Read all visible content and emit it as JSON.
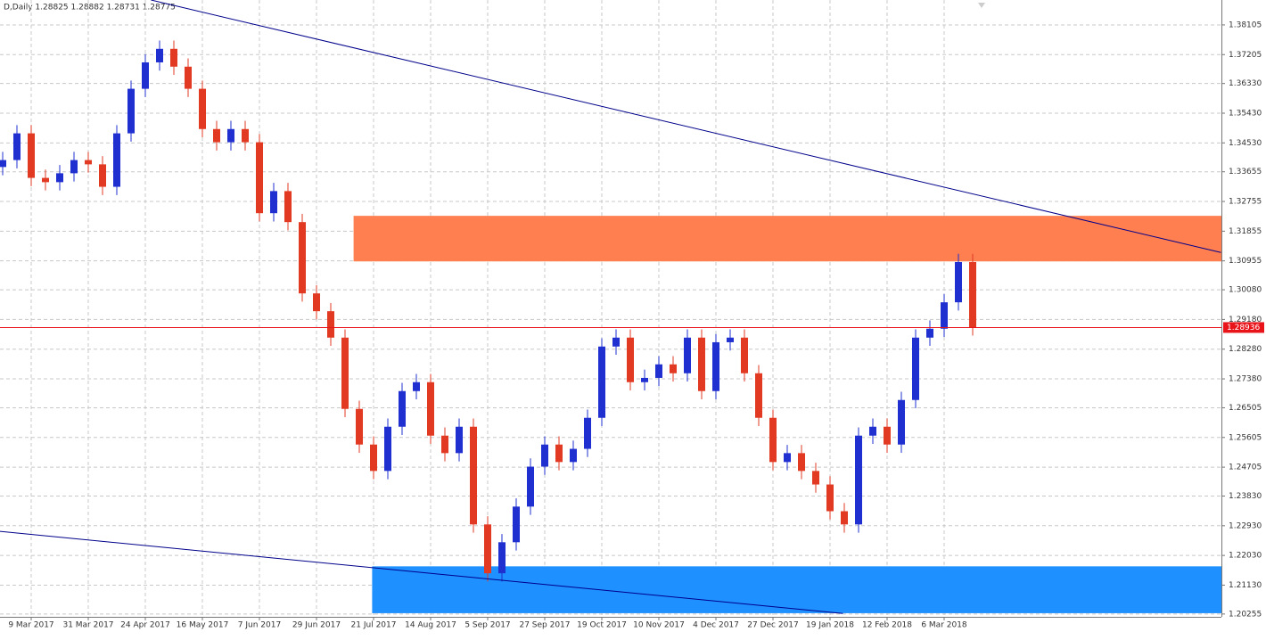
{
  "chart_data": {
    "type": "candlestick",
    "title": "D,Daily 1.28825 1.28882 1.28731 1.28775",
    "up_color": "#1f2fd0",
    "down_color": "#e23a22",
    "grid": true,
    "xlim": [
      -0.1875,
      85.4375
    ],
    "xticks": [
      {
        "value": 2,
        "label": "9 Mar 2017"
      },
      {
        "value": 6,
        "label": "31 Mar 2017"
      },
      {
        "value": 10,
        "label": "24 Apr 2017"
      },
      {
        "value": 14,
        "label": "16 May 2017"
      },
      {
        "value": 18,
        "label": "7 Jun 2017"
      },
      {
        "value": 22,
        "label": "29 Jun 2017"
      },
      {
        "value": 26,
        "label": "21 Jul 2017"
      },
      {
        "value": 30,
        "label": "14 Aug 2017"
      },
      {
        "value": 34,
        "label": "5 Sep 2017"
      },
      {
        "value": 38,
        "label": "27 Sep 2017"
      },
      {
        "value": 42,
        "label": "19 Oct 2017"
      },
      {
        "value": 46,
        "label": "10 Nov 2017"
      },
      {
        "value": 50,
        "label": "4 Dec 2017"
      },
      {
        "value": 54,
        "label": "27 Dec 2017"
      },
      {
        "value": 58,
        "label": "19 Jan 2018"
      },
      {
        "value": 62,
        "label": "12 Feb 2018"
      },
      {
        "value": 66,
        "label": "6 Mar 2018"
      }
    ],
    "ylim": [
      1.2017,
      1.3886
    ],
    "yticks": [
      1.38105,
      1.37205,
      {
        "value": 1.3633,
        "label": "1.36330"
      },
      {
        "value": 1.3543,
        "label": "1.35430"
      },
      {
        "value": 1.3453,
        "label": "1.34530"
      },
      1.33655,
      1.32755,
      1.31855,
      1.30955,
      {
        "value": 1.3008,
        "label": "1.30080"
      },
      {
        "value": 1.2918,
        "label": "1.29180"
      },
      {
        "value": 1.2828,
        "label": "1.28280"
      },
      {
        "value": 1.2738,
        "label": "1.27380"
      },
      1.26505,
      1.25605,
      1.24705,
      {
        "value": 1.2383,
        "label": "1.23830"
      },
      {
        "value": 1.2293,
        "label": "1.22930"
      },
      {
        "value": 1.2203,
        "label": "1.22030"
      },
      {
        "value": 1.2113,
        "label": "1.21130"
      },
      1.20255
    ],
    "current_price": 1.28936,
    "current_color": "#e8141a",
    "open": [
      1.338,
      1.3401,
      1.3482,
      1.3347,
      1.3334,
      1.3361,
      1.3401,
      1.3388,
      1.332,
      1.3482,
      1.3617,
      1.3697,
      1.3738,
      1.3684,
      1.3617,
      1.3495,
      1.3455,
      1.3495,
      1.3455,
      1.324,
      1.3307,
      1.3213,
      1.2997,
      1.2943,
      1.2863,
      1.2647,
      1.2539,
      1.2459,
      1.2593,
      1.2701,
      1.2728,
      1.2566,
      1.2513,
      1.2593,
      1.2297,
      1.2149,
      1.2243,
      1.2351,
      1.2472,
      1.2539,
      1.2486,
      1.2526,
      1.262,
      1.2836,
      1.2863,
      1.2728,
      1.2741,
      1.2782,
      1.2755,
      1.2863,
      1.2701,
      1.2849,
      1.2863,
      1.2755,
      1.262,
      1.2486,
      1.2513,
      1.2459,
      1.2418,
      1.2337,
      1.2297,
      1.2566,
      1.2593,
      1.2539,
      1.2674,
      1.2863,
      1.289,
      1.297,
      1.3092
    ],
    "high": [
      1.3426,
      1.3507,
      1.3507,
      1.3372,
      1.3386,
      1.3426,
      1.3426,
      1.3413,
      1.3507,
      1.3642,
      1.3722,
      1.3763,
      1.3763,
      1.3709,
      1.3642,
      1.352,
      1.352,
      1.352,
      1.348,
      1.3332,
      1.3332,
      1.3238,
      1.3022,
      1.2968,
      1.2888,
      1.2672,
      1.2564,
      1.2618,
      1.2726,
      1.2753,
      1.2753,
      1.2591,
      1.2618,
      1.2618,
      1.2322,
      1.2268,
      1.2376,
      1.2497,
      1.2564,
      1.2564,
      1.2551,
      1.2645,
      1.2861,
      1.2888,
      1.2888,
      1.2766,
      1.2807,
      1.2807,
      1.2888,
      1.2888,
      1.2874,
      1.2888,
      1.2888,
      1.278,
      1.2645,
      1.2538,
      1.2538,
      1.2484,
      1.2443,
      1.2362,
      1.2591,
      1.2618,
      1.2618,
      1.2699,
      1.2888,
      1.2915,
      1.2995,
      1.3117,
      1.3117
    ],
    "low": [
      1.3355,
      1.3376,
      1.3322,
      1.3309,
      1.3309,
      1.3336,
      1.3363,
      1.3295,
      1.3295,
      1.3457,
      1.3592,
      1.3672,
      1.3659,
      1.3592,
      1.347,
      1.343,
      1.343,
      1.343,
      1.3215,
      1.3215,
      1.3188,
      1.2972,
      1.2918,
      1.2838,
      1.2622,
      1.2514,
      1.2434,
      1.2434,
      1.2568,
      1.2676,
      1.2541,
      1.2488,
      1.2488,
      1.2272,
      1.2124,
      1.2124,
      1.2218,
      1.2326,
      1.2447,
      1.2461,
      1.2461,
      1.2501,
      1.2595,
      1.2811,
      1.2703,
      1.2703,
      1.2716,
      1.273,
      1.273,
      1.2676,
      1.2676,
      1.2824,
      1.273,
      1.2595,
      1.2461,
      1.2461,
      1.2434,
      1.2393,
      1.2312,
      1.2272,
      1.2272,
      1.2541,
      1.2514,
      1.2514,
      1.2649,
      1.2838,
      1.2865,
      1.2945,
      1.2869
    ],
    "close": [
      1.3401,
      1.3482,
      1.3347,
      1.3334,
      1.3361,
      1.3401,
      1.3388,
      1.332,
      1.3482,
      1.3617,
      1.3697,
      1.3738,
      1.3684,
      1.3617,
      1.3495,
      1.3455,
      1.3495,
      1.3455,
      1.324,
      1.3307,
      1.3213,
      1.2997,
      1.2943,
      1.2863,
      1.2647,
      1.2539,
      1.2459,
      1.2593,
      1.2701,
      1.2728,
      1.2566,
      1.2513,
      1.2593,
      1.2297,
      1.2149,
      1.2243,
      1.2351,
      1.2472,
      1.2539,
      1.2486,
      1.2526,
      1.262,
      1.2836,
      1.2863,
      1.2728,
      1.2741,
      1.2782,
      1.2755,
      1.2863,
      1.2701,
      1.2849,
      1.2863,
      1.2755,
      1.262,
      1.2486,
      1.2513,
      1.2459,
      1.2418,
      1.2337,
      1.2297,
      1.2566,
      1.2593,
      1.2539,
      1.2674,
      1.2863,
      1.289,
      1.297,
      1.3092,
      1.28936
    ],
    "zones": [
      {
        "x_start": 24.6,
        "from": 1.3094,
        "to": 1.3232,
        "color": "#ff7f50"
      },
      {
        "x_start": 25.9,
        "from": 1.2028,
        "to": 1.217,
        "color": "#1e90ff"
      }
    ],
    "trend_lines": [
      {
        "x": [
          10.4,
          85.4
        ],
        "y": [
          1.3886,
          1.3121
        ],
        "color": "#00008b"
      },
      {
        "x": [
          -0.19,
          58.9
        ],
        "y": [
          1.2276,
          1.2027
        ],
        "color": "#00008b"
      }
    ]
  }
}
